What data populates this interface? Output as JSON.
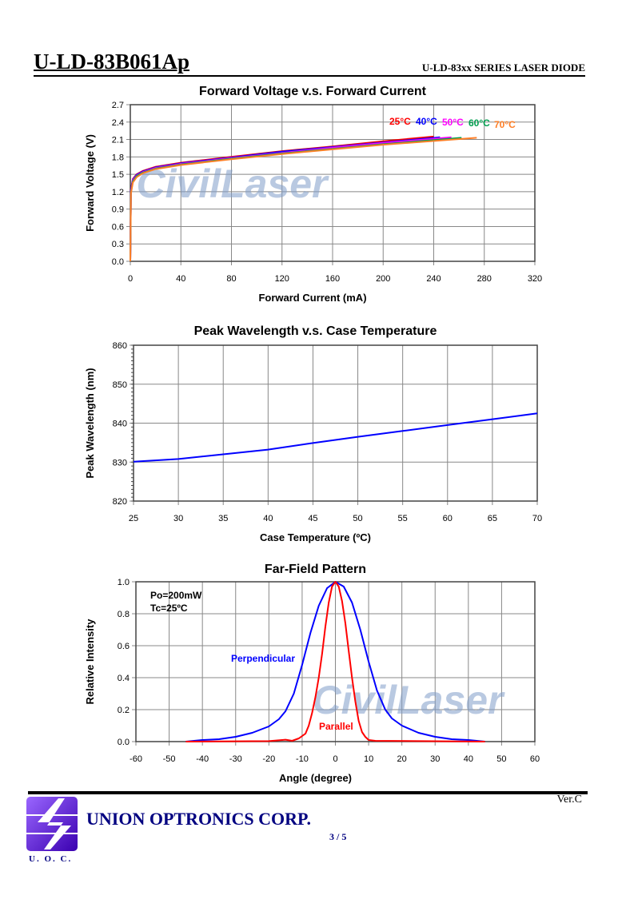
{
  "header": {
    "model": "U-LD-83B061Ap",
    "series": "U-LD-83xx SERIES LASER DIODE"
  },
  "watermark": "CivilLaser",
  "footer": {
    "company": "UNION OPTRONICS CORP.",
    "logo_text": "U. O. C.",
    "page": "3 / 5",
    "version": "Ver.C"
  },
  "chart_data": [
    {
      "type": "line",
      "title": "Forward Voltage v.s. Forward Current",
      "xlabel": "Forward Current (mA)",
      "ylabel": "Forward Voltage (V)",
      "xlim": [
        0,
        320
      ],
      "ylim": [
        0,
        2.7
      ],
      "xticks": [
        "0",
        "40",
        "80",
        "120",
        "160",
        "200",
        "240",
        "280",
        "320"
      ],
      "yticks": [
        "0.0",
        "0.3",
        "0.6",
        "0.9",
        "1.2",
        "1.5",
        "1.8",
        "2.1",
        "2.4",
        "2.7"
      ],
      "grid": true,
      "legend": "top-right inline labels",
      "series": [
        {
          "name": "25°C",
          "color": "#ff0000",
          "points": [
            [
              0,
              0
            ],
            [
              0.5,
              1.25
            ],
            [
              2,
              1.42
            ],
            [
              5,
              1.5
            ],
            [
              10,
              1.56
            ],
            [
              20,
              1.63
            ],
            [
              40,
              1.7
            ],
            [
              80,
              1.8
            ],
            [
              120,
              1.9
            ],
            [
              160,
              1.98
            ],
            [
              200,
              2.07
            ],
            [
              240,
              2.15
            ]
          ]
        },
        {
          "name": "40°C",
          "color": "#0000ff",
          "points": [
            [
              0,
              0
            ],
            [
              0.5,
              1.23
            ],
            [
              2,
              1.41
            ],
            [
              5,
              1.49
            ],
            [
              10,
              1.55
            ],
            [
              20,
              1.62
            ],
            [
              40,
              1.69
            ],
            [
              80,
              1.79
            ],
            [
              120,
              1.89
            ],
            [
              160,
              1.97
            ],
            [
              200,
              2.05
            ],
            [
              245,
              2.14
            ]
          ]
        },
        {
          "name": "50°C",
          "color": "#ff00ff",
          "points": [
            [
              0,
              0
            ],
            [
              0.5,
              1.21
            ],
            [
              2,
              1.4
            ],
            [
              5,
              1.48
            ],
            [
              10,
              1.54
            ],
            [
              20,
              1.61
            ],
            [
              40,
              1.68
            ],
            [
              80,
              1.78
            ],
            [
              120,
              1.87
            ],
            [
              160,
              1.96
            ],
            [
              200,
              2.04
            ],
            [
              254,
              2.14
            ]
          ]
        },
        {
          "name": "60°C",
          "color": "#00a050",
          "points": [
            [
              0,
              0
            ],
            [
              0.5,
              1.19
            ],
            [
              2,
              1.38
            ],
            [
              5,
              1.47
            ],
            [
              10,
              1.53
            ],
            [
              20,
              1.6
            ],
            [
              40,
              1.67
            ],
            [
              80,
              1.77
            ],
            [
              120,
              1.86
            ],
            [
              160,
              1.94
            ],
            [
              200,
              2.02
            ],
            [
              262,
              2.13
            ]
          ]
        },
        {
          "name": "70°C",
          "color": "#ff7f27",
          "points": [
            [
              0,
              0
            ],
            [
              0.5,
              1.17
            ],
            [
              2,
              1.36
            ],
            [
              5,
              1.45
            ],
            [
              10,
              1.52
            ],
            [
              20,
              1.59
            ],
            [
              40,
              1.66
            ],
            [
              80,
              1.76
            ],
            [
              120,
              1.85
            ],
            [
              160,
              1.93
            ],
            [
              200,
              2.01
            ],
            [
              274,
              2.13
            ]
          ]
        }
      ]
    },
    {
      "type": "line",
      "title": "Peak Wavelength v.s. Case Temperature",
      "xlabel": "Case Temperature (ºC)",
      "ylabel": "Peak Wavelength (nm)",
      "xlim": [
        25,
        70
      ],
      "ylim": [
        820,
        860
      ],
      "xticks": [
        "25",
        "30",
        "35",
        "40",
        "45",
        "50",
        "55",
        "60",
        "65",
        "70"
      ],
      "yticks": [
        "820",
        "830",
        "840",
        "850",
        "860"
      ],
      "grid": true,
      "series": [
        {
          "color": "#0000ff",
          "points": [
            [
              25,
              830.1
            ],
            [
              30,
              830.8
            ],
            [
              35,
              832
            ],
            [
              40,
              833.2
            ],
            [
              45,
              834.9
            ],
            [
              50,
              836.5
            ],
            [
              55,
              838
            ],
            [
              60,
              839.5
            ],
            [
              65,
              841
            ],
            [
              70,
              842.5
            ]
          ]
        }
      ]
    },
    {
      "type": "line",
      "title": "Far-Field Pattern",
      "xlabel": "Angle (degree)",
      "ylabel": "Relative Intensity",
      "xlim": [
        -60,
        60
      ],
      "ylim": [
        0,
        1
      ],
      "xticks": [
        "-60",
        "-50",
        "-40",
        "-30",
        "-20",
        "-10",
        "0",
        "10",
        "20",
        "30",
        "40",
        "50",
        "60"
      ],
      "yticks": [
        "0.0",
        "0.2",
        "0.4",
        "0.6",
        "0.8",
        "1.0"
      ],
      "grid": true,
      "annotations": [
        "Po=200mW",
        "Tc=25ºC"
      ],
      "series": [
        {
          "name": "Perpendicular",
          "color": "#0000ff",
          "points": [
            [
              -45,
              0
            ],
            [
              -40,
              0.01
            ],
            [
              -35,
              0.015
            ],
            [
              -30,
              0.03
            ],
            [
              -25,
              0.055
            ],
            [
              -20,
              0.095
            ],
            [
              -17,
              0.14
            ],
            [
              -15,
              0.19
            ],
            [
              -12.5,
              0.3
            ],
            [
              -10,
              0.48
            ],
            [
              -7.5,
              0.68
            ],
            [
              -5,
              0.85
            ],
            [
              -2.5,
              0.96
            ],
            [
              0,
              1.0
            ],
            [
              2.5,
              0.97
            ],
            [
              5,
              0.87
            ],
            [
              7.5,
              0.7
            ],
            [
              10,
              0.5
            ],
            [
              12.5,
              0.32
            ],
            [
              15,
              0.2
            ],
            [
              17,
              0.145
            ],
            [
              20,
              0.1
            ],
            [
              25,
              0.055
            ],
            [
              30,
              0.03
            ],
            [
              35,
              0.015
            ],
            [
              40,
              0.01
            ],
            [
              45,
              0
            ]
          ]
        },
        {
          "name": "Parallel",
          "color": "#ff0000",
          "points": [
            [
              -45,
              0
            ],
            [
              -20,
              0.003
            ],
            [
              -16,
              0.01
            ],
            [
              -15,
              0.012
            ],
            [
              -13,
              0.005
            ],
            [
              -11,
              0.02
            ],
            [
              -9,
              0.05
            ],
            [
              -8,
              0.1
            ],
            [
              -7,
              0.18
            ],
            [
              -6,
              0.28
            ],
            [
              -5,
              0.4
            ],
            [
              -4,
              0.55
            ],
            [
              -3,
              0.72
            ],
            [
              -2,
              0.87
            ],
            [
              -1,
              0.97
            ],
            [
              0,
              1.0
            ],
            [
              1,
              0.97
            ],
            [
              2,
              0.88
            ],
            [
              3,
              0.74
            ],
            [
              4,
              0.57
            ],
            [
              5,
              0.4
            ],
            [
              6,
              0.25
            ],
            [
              7,
              0.13
            ],
            [
              8,
              0.06
            ],
            [
              9,
              0.03
            ],
            [
              10,
              0.01
            ],
            [
              12,
              0.005
            ],
            [
              45,
              0
            ]
          ]
        }
      ]
    }
  ]
}
